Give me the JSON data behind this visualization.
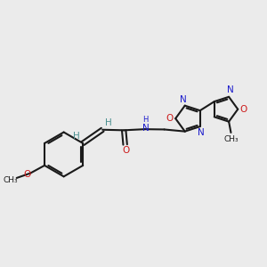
{
  "bg_color": "#ebebeb",
  "bond_color": "#1a1a1a",
  "nitrogen_color": "#1a1acc",
  "oxygen_color": "#cc1a1a",
  "teal_color": "#4a8f8f",
  "figsize": [
    3.0,
    3.0
  ],
  "dpi": 100,
  "lw": 1.5,
  "fs": 7.5,
  "xlim": [
    0,
    10
  ],
  "ylim": [
    0,
    10
  ]
}
